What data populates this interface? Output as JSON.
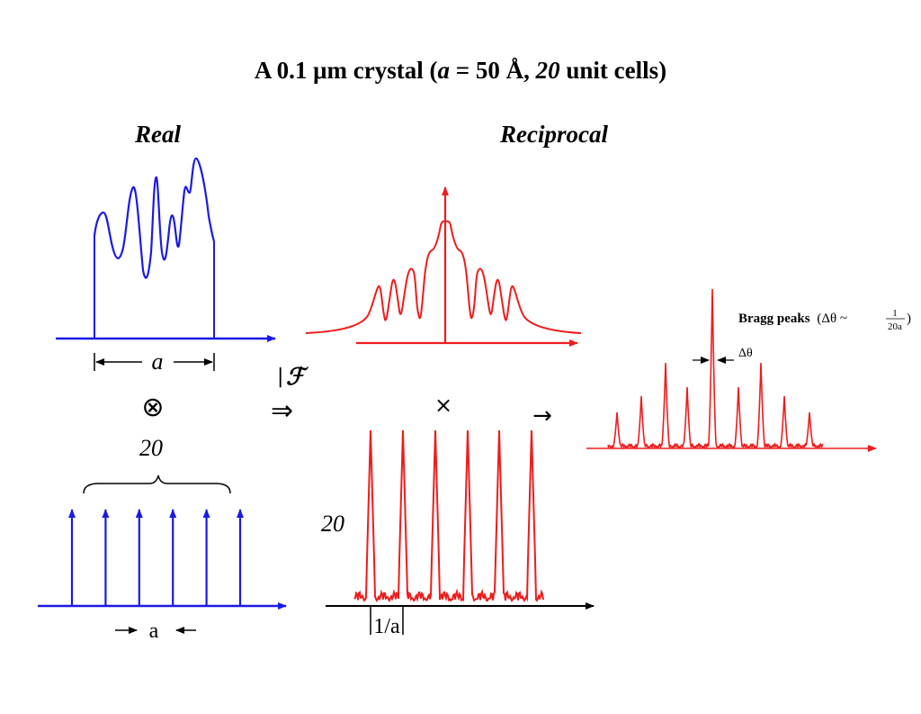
{
  "title": {
    "part1": "A 0.1 μm crystal (",
    "a_var": "a",
    "part2": " = 50 Å, ",
    "n_var": "20",
    "part3": " unit cells)"
  },
  "panels": {
    "real_label": "Real",
    "reciprocal_label": "Reciprocal"
  },
  "real_space": {
    "cell_width_label": "a",
    "lattice_count_label": "20",
    "lattice_spacing_label": "a",
    "lattice_points": 6,
    "convolution_symbol": "⊗"
  },
  "operators": {
    "fourier_symbol": "ℱ",
    "implies_symbol": "⇒",
    "multiply_symbol": "×",
    "result_arrow": "→"
  },
  "reciprocal_space": {
    "lattice_amplitude_label": "20",
    "spacing_label": "1/a",
    "bragg_caption": "Bragg peaks",
    "delta_theta": "Δθ",
    "formula_prefix": "(Δθ ~",
    "formula_num": "1",
    "formula_den": "20a",
    "formula_suffix": ")"
  },
  "colors": {
    "real": "#1a1ae6",
    "reciprocal": "#ee1c1c",
    "ink": "#000000"
  }
}
